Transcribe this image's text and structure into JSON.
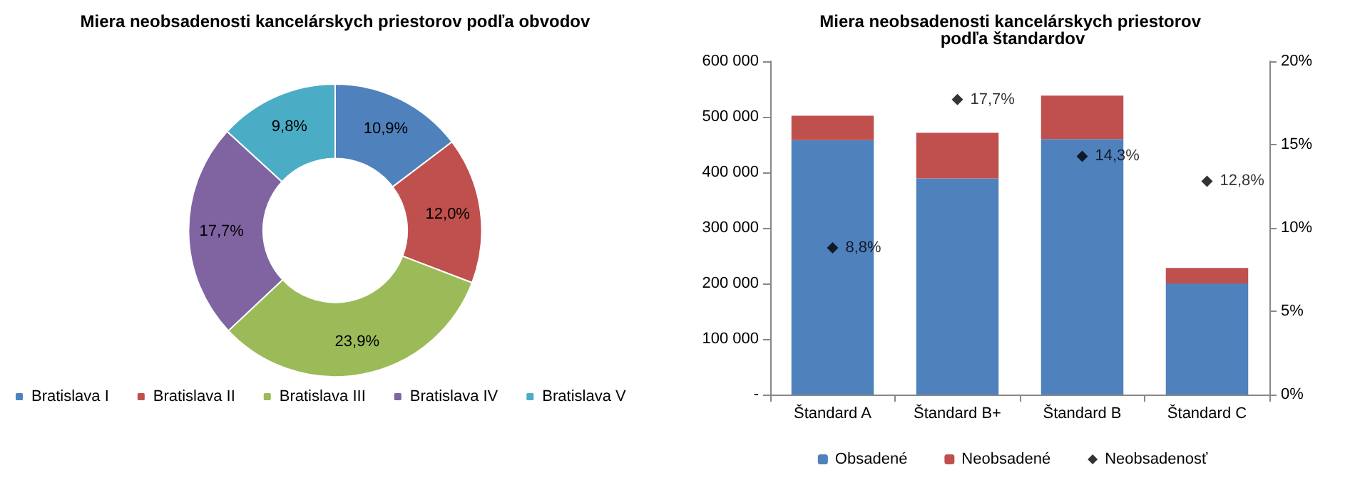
{
  "chart_data": [
    {
      "type": "donut",
      "title": "Miera neobsadenosti kancelárskych priestorov podľa obvodov",
      "categories": [
        "Bratislava I",
        "Bratislava II",
        "Bratislava III",
        "Bratislava IV",
        "Bratislava V"
      ],
      "values": [
        10.9,
        12.0,
        23.9,
        17.7,
        9.8
      ],
      "colors": [
        "#4f81bd",
        "#c0504d",
        "#9bbb59",
        "#8064a2",
        "#4bacc6"
      ],
      "value_labels": [
        "10,9%",
        "12,0%",
        "23,9%",
        "17,7%",
        "9,8%"
      ],
      "legend": "bottom"
    },
    {
      "type": "bar",
      "title": "Miera neobsadenosti kancelárskych priestorov podľa štandardov",
      "categories": [
        "Štandard A",
        "Štandard B+",
        "Štandard B",
        "Štandard C"
      ],
      "stacked": true,
      "legend": "bottom",
      "grid": false,
      "ylim": [
        0,
        600000
      ],
      "yticks": [
        {
          "value": 0,
          "label": "-"
        },
        {
          "value": 100000,
          "label": "100 000"
        },
        {
          "value": 200000,
          "label": "200 000"
        },
        {
          "value": 300000,
          "label": "300 000"
        },
        {
          "value": 400000,
          "label": "400 000"
        },
        {
          "value": 500000,
          "label": "500 000"
        },
        {
          "value": 600000,
          "label": "600 000"
        }
      ],
      "y2lim": [
        0,
        20
      ],
      "y2ticks": [
        {
          "value": 0,
          "label": "0%"
        },
        {
          "value": 5,
          "label": "5%"
        },
        {
          "value": 10,
          "label": "10%"
        },
        {
          "value": 15,
          "label": "15%"
        },
        {
          "value": 20,
          "label": "20%"
        }
      ],
      "series": [
        {
          "name": "Obsadené",
          "type": "bar",
          "color": "#4f81bd",
          "values": [
            458000,
            389000,
            460000,
            200000
          ]
        },
        {
          "name": "Neobsadené",
          "type": "bar",
          "color": "#c0504d",
          "values": [
            44000,
            82000,
            78000,
            28000
          ]
        },
        {
          "name": "Neobsadenosť",
          "type": "scatter",
          "axis": "y2",
          "marker": "diamond",
          "color": "#000000",
          "x": [
            "Štandard A",
            "Štandard B+",
            "Štandard B",
            "Štandard C"
          ],
          "values": [
            8.8,
            17.7,
            14.3,
            12.8
          ],
          "value_labels": [
            "8,8%",
            "17,7%",
            "14,3%",
            "12,8%"
          ]
        }
      ]
    }
  ]
}
